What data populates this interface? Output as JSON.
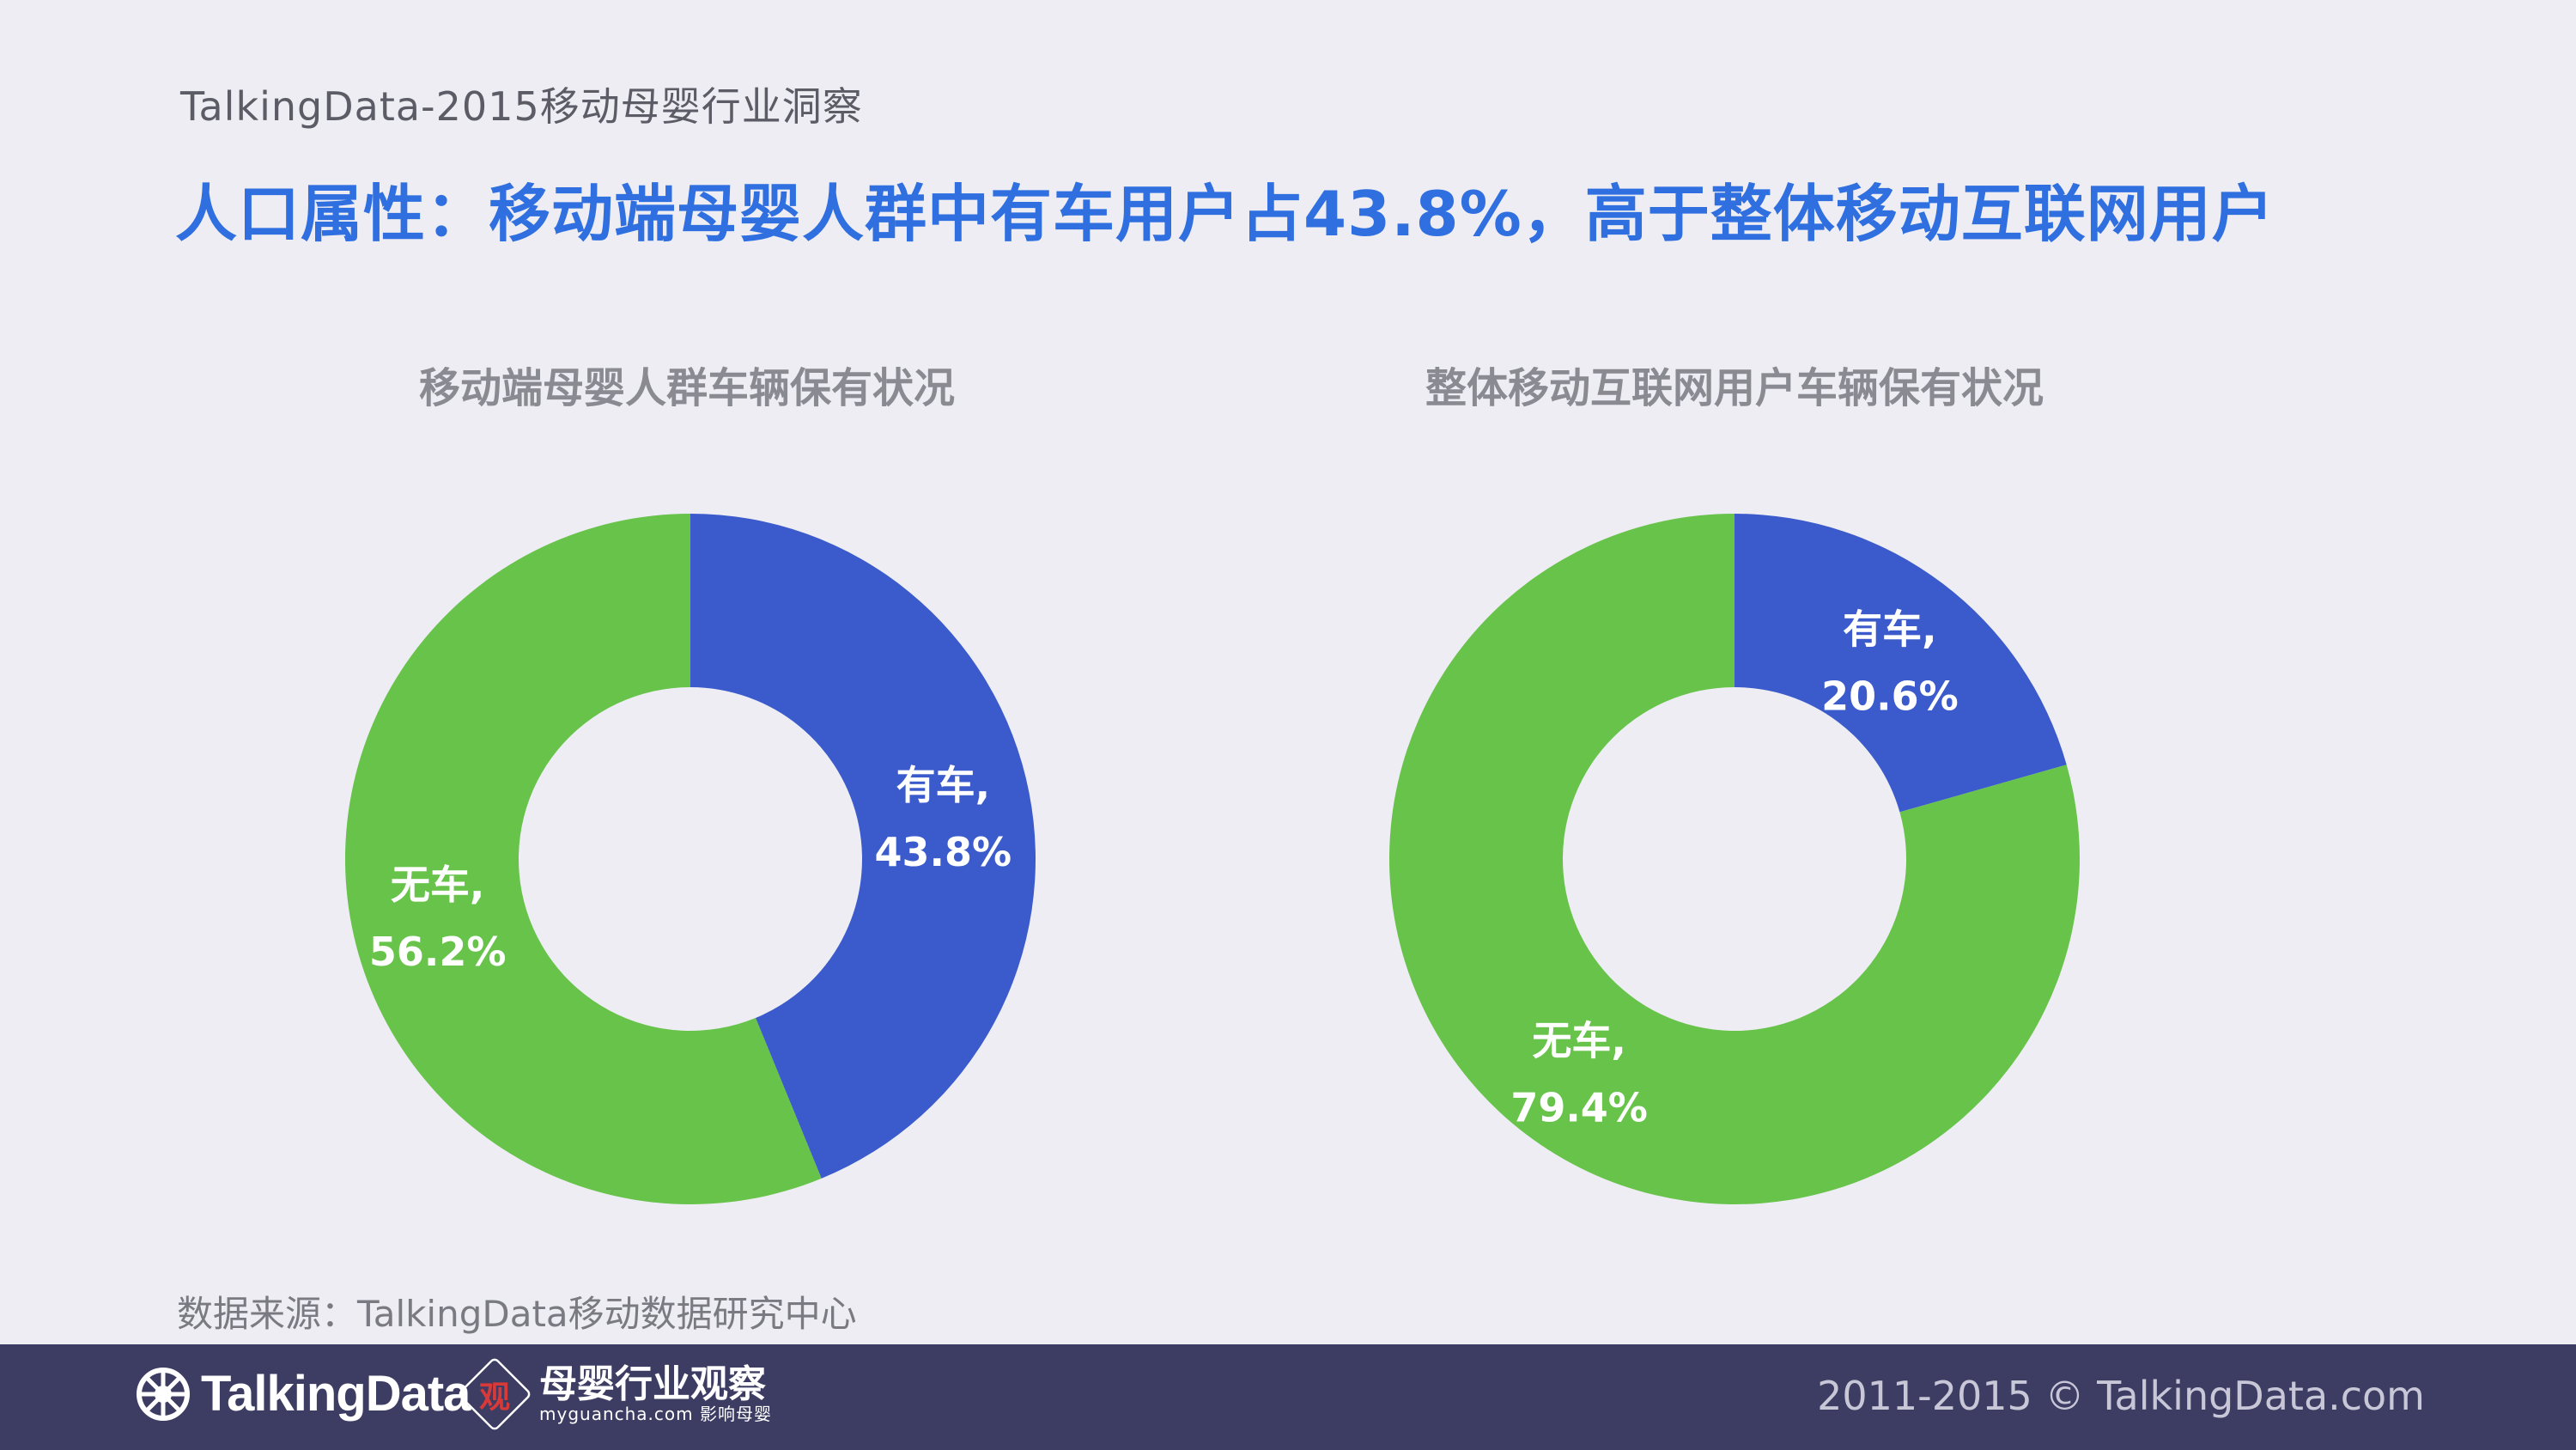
{
  "header": {
    "text": "TalkingData-2015移动母婴行业洞察"
  },
  "main_title": {
    "text": "人口属性：移动端母婴人群中有车用户占43.8%，高于整体移动互联网用户",
    "color": "#2f6fe0"
  },
  "source_note": "数据来源：TalkingData移动数据研究中心",
  "footer": {
    "logo_text": "TalkingData",
    "partner_name": "母婴行业观察",
    "partner_badge": "观",
    "partner_sub": "myguancha.com 影响母婴",
    "copyright": "2011-2015 © TalkingData.com"
  },
  "colors": {
    "has_car": "#3b5bcc",
    "no_car": "#67c34a",
    "background": "#eeedf3"
  },
  "chart_data": [
    {
      "type": "pie",
      "title": "移动端母婴人群车辆保有状况",
      "donut": true,
      "categories": [
        "有车",
        "无车"
      ],
      "values": [
        43.8,
        56.2
      ],
      "labels": [
        {
          "name": "有车,",
          "value": "43.8%"
        },
        {
          "name": "无车,",
          "value": "56.2%"
        }
      ]
    },
    {
      "type": "pie",
      "title": "整体移动互联网用户车辆保有状况",
      "donut": true,
      "categories": [
        "有车",
        "无车"
      ],
      "values": [
        20.6,
        79.4
      ],
      "labels": [
        {
          "name": "有车,",
          "value": "20.6%"
        },
        {
          "name": "无车,",
          "value": "79.4%"
        }
      ]
    }
  ]
}
